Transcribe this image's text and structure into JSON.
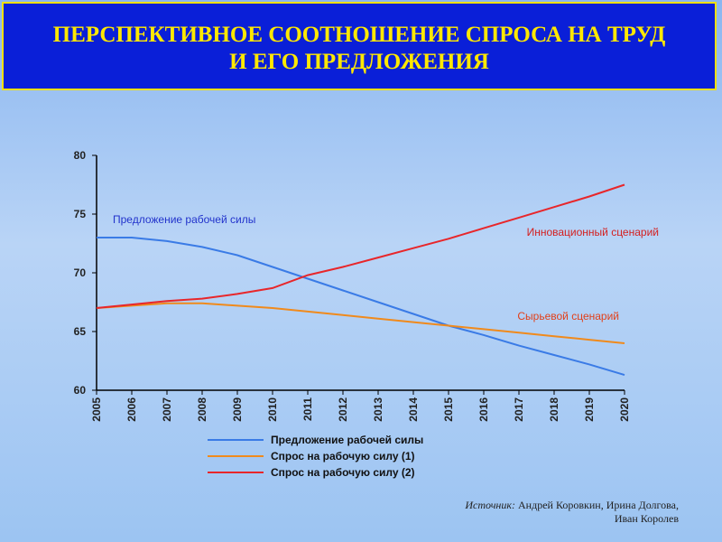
{
  "chart_data": {
    "type": "line",
    "title": [
      "ПЕРСПЕКТИВНОЕ СООТНОШЕНИЕ СПРОСА НА ТРУД",
      "И ЕГО ПРЕДЛОЖЕНИЯ"
    ],
    "x": [
      2005,
      2006,
      2007,
      2008,
      2009,
      2010,
      2011,
      2012,
      2013,
      2014,
      2015,
      2016,
      2017,
      2018,
      2019,
      2020
    ],
    "xlim": [
      2005,
      2020
    ],
    "xticks": [
      2005,
      2006,
      2007,
      2008,
      2009,
      2010,
      2011,
      2012,
      2013,
      2014,
      2015,
      2016,
      2017,
      2018,
      2019,
      2020
    ],
    "ylim": [
      60,
      80
    ],
    "yticks": [
      60,
      65,
      70,
      75,
      80
    ],
    "grid": false,
    "series": [
      {
        "name": "Предложение рабочей силы",
        "color": "#3a7be6",
        "values": [
          73,
          73,
          72.7,
          72.2,
          71.5,
          70.5,
          69.5,
          68.5,
          67.5,
          66.5,
          65.5,
          64.7,
          63.8,
          63,
          62.2,
          61.3
        ]
      },
      {
        "name": "Спрос на рабочую силу (1)",
        "color": "#f08a1c",
        "values": [
          67,
          67.2,
          67.4,
          67.4,
          67.2,
          67,
          66.7,
          66.4,
          66.1,
          65.8,
          65.5,
          65.2,
          64.9,
          64.6,
          64.3,
          64
        ]
      },
      {
        "name": "Спрос на рабочую силу (2)",
        "color": "#e8262a",
        "values": [
          67,
          67.3,
          67.6,
          67.8,
          68.2,
          68.7,
          69.8,
          70.5,
          71.3,
          72.1,
          72.9,
          73.8,
          74.7,
          75.6,
          76.5,
          77.5
        ]
      }
    ],
    "annotations": [
      {
        "text": "Предложение рабочей силы",
        "color": "#2233cc"
      },
      {
        "text": "Инновационный сценарий",
        "color": "#d42020"
      },
      {
        "text": "Сырьевой сценарий",
        "color": "#e2401a"
      }
    ]
  },
  "source": {
    "label": "Источник:",
    "line1": "Андрей Коровкин, Ирина Долгова,",
    "line2": "Иван Королев"
  }
}
